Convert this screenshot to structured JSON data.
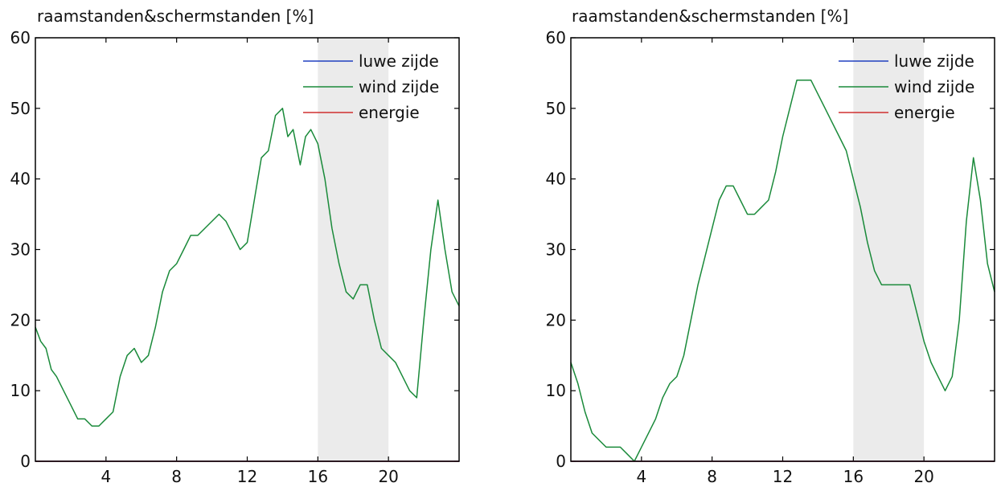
{
  "chart_data": [
    {
      "type": "line",
      "title": "raamstanden&schermstanden [%]",
      "xlim": [
        0,
        24
      ],
      "ylim": [
        0,
        60
      ],
      "xticks": [
        4,
        8,
        12,
        16,
        20
      ],
      "yticks": [
        0,
        10,
        20,
        30,
        40,
        50,
        60
      ],
      "shaded_region": [
        16,
        20
      ],
      "shaded_color": "#ebebeb",
      "grid": false,
      "legend_position": "top-right",
      "series": [
        {
          "name": "luwe zijde",
          "color": "#2040c0",
          "x": [
            0,
            24
          ],
          "y": [
            0,
            0
          ]
        },
        {
          "name": "wind zijde",
          "color": "#1a8a3a",
          "x": [
            0,
            0.3,
            0.6,
            0.9,
            1.2,
            1.6,
            2.0,
            2.4,
            2.8,
            3.2,
            3.6,
            4.0,
            4.4,
            4.8,
            5.2,
            5.6,
            6.0,
            6.4,
            6.8,
            7.2,
            7.6,
            8.0,
            8.4,
            8.8,
            9.2,
            9.6,
            10.0,
            10.4,
            10.8,
            11.2,
            11.6,
            12.0,
            12.4,
            12.8,
            13.2,
            13.6,
            14.0,
            14.3,
            14.6,
            15.0,
            15.3,
            15.6,
            16.0,
            16.4,
            16.8,
            17.2,
            17.6,
            18.0,
            18.4,
            18.8,
            19.2,
            19.6,
            20.0,
            20.4,
            20.8,
            21.2,
            21.6,
            22.0,
            22.4,
            22.8,
            23.2,
            23.6,
            24.0
          ],
          "y": [
            19,
            17,
            16,
            13,
            12,
            10,
            8,
            6,
            6,
            5,
            5,
            6,
            7,
            12,
            15,
            16,
            14,
            15,
            19,
            24,
            27,
            28,
            30,
            32,
            32,
            33,
            34,
            35,
            34,
            32,
            30,
            31,
            37,
            43,
            44,
            49,
            50,
            46,
            47,
            42,
            46,
            47,
            45,
            40,
            33,
            28,
            24,
            23,
            25,
            25,
            20,
            16,
            15,
            14,
            12,
            10,
            9,
            20,
            30,
            37,
            30,
            24,
            22
          ]
        },
        {
          "name": "energie",
          "color": "#d03030",
          "x": [
            0,
            24
          ],
          "y": [
            0,
            0
          ]
        }
      ]
    },
    {
      "type": "line",
      "title": "raamstanden&schermstanden [%]",
      "xlim": [
        0,
        24
      ],
      "ylim": [
        0,
        60
      ],
      "xticks": [
        4,
        8,
        12,
        16,
        20
      ],
      "yticks": [
        0,
        10,
        20,
        30,
        40,
        50,
        60
      ],
      "shaded_region": [
        16,
        20
      ],
      "shaded_color": "#ebebeb",
      "grid": false,
      "legend_position": "top-right",
      "series": [
        {
          "name": "luwe zijde",
          "color": "#2040c0",
          "x": [
            0,
            24
          ],
          "y": [
            0,
            0
          ]
        },
        {
          "name": "wind zijde",
          "color": "#1a8a3a",
          "x": [
            0,
            0.4,
            0.8,
            1.2,
            1.6,
            2.0,
            2.4,
            2.8,
            3.2,
            3.6,
            4.0,
            4.4,
            4.8,
            5.2,
            5.6,
            6.0,
            6.4,
            6.8,
            7.2,
            7.6,
            8.0,
            8.4,
            8.8,
            9.2,
            9.6,
            10.0,
            10.4,
            10.8,
            11.2,
            11.6,
            12.0,
            12.4,
            12.8,
            13.2,
            13.6,
            14.0,
            14.4,
            14.8,
            15.2,
            15.6,
            16.0,
            16.4,
            16.8,
            17.2,
            17.6,
            18.0,
            18.4,
            18.8,
            19.2,
            19.6,
            20.0,
            20.4,
            20.8,
            21.2,
            21.6,
            22.0,
            22.4,
            22.8,
            23.2,
            23.6,
            24.0
          ],
          "y": [
            14,
            11,
            7,
            4,
            3,
            2,
            2,
            2,
            1,
            0,
            2,
            4,
            6,
            9,
            11,
            12,
            15,
            20,
            25,
            29,
            33,
            37,
            39,
            39,
            37,
            35,
            35,
            36,
            37,
            41,
            46,
            50,
            54,
            54,
            54,
            52,
            50,
            48,
            46,
            44,
            40,
            36,
            31,
            27,
            25,
            25,
            25,
            25,
            25,
            21,
            17,
            14,
            12,
            10,
            12,
            20,
            34,
            43,
            37,
            28,
            24
          ]
        },
        {
          "name": "energie",
          "color": "#d03030",
          "x": [
            0,
            24
          ],
          "y": [
            0,
            0
          ]
        }
      ]
    }
  ]
}
